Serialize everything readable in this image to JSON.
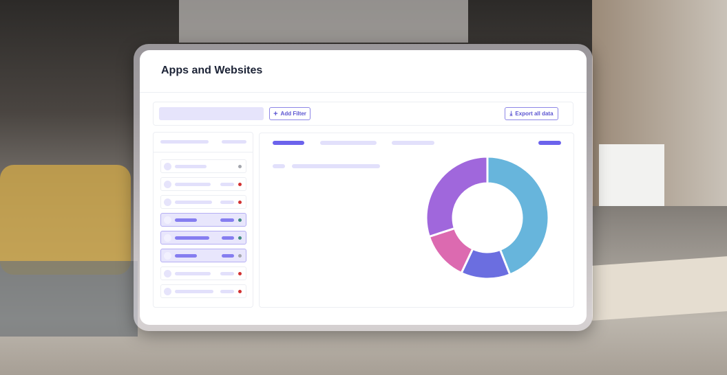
{
  "card": {
    "title": "Apps and Websites"
  },
  "toolbar": {
    "add_filter_label": "Add Filter",
    "add_filter_icon": "plus-icon",
    "export_label": "Export all data",
    "export_icon": "download-icon"
  },
  "list": {
    "rows": [
      {
        "selected": false,
        "status": "#a4a6ad"
      },
      {
        "selected": false,
        "status": "#d13232"
      },
      {
        "selected": false,
        "status": "#d13232"
      },
      {
        "selected": true,
        "status": "#3f8a80"
      },
      {
        "selected": true,
        "status": "#3f8a80"
      },
      {
        "selected": true,
        "status": "#a4a6ad"
      },
      {
        "selected": false,
        "status": "#d13232"
      },
      {
        "selected": false,
        "status": "#d13232"
      }
    ]
  },
  "colors": {
    "accent": "#6c63ec",
    "placeholder": "#e2e0fb"
  },
  "donut": {
    "segments": [
      {
        "color": "#67b5dc",
        "percent": 44
      },
      {
        "color": "#6b6ee0",
        "percent": 13
      },
      {
        "color": "#dc6ab0",
        "percent": 13
      },
      {
        "color": "#a067dc",
        "percent": 30
      }
    ]
  }
}
